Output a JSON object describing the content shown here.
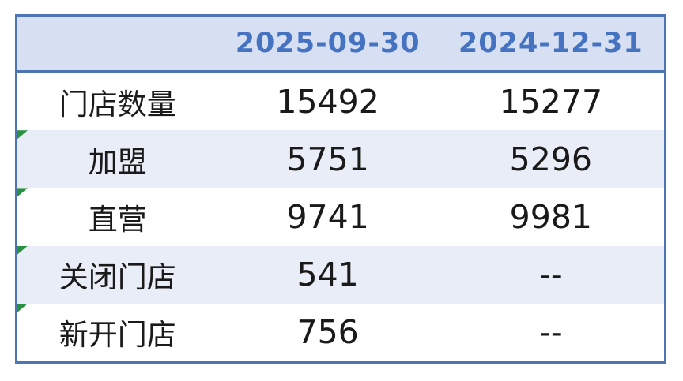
{
  "colors": {
    "border": "#4d74b3",
    "header_bg": "#d6e0f2",
    "header_text": "#4673c1",
    "alt_row_bg": "#e9edf7",
    "row_bg": "#ffffff",
    "text": "#1a1a1a",
    "indicator_green": "#279140"
  },
  "icons": {
    "error_indicator": "green-corner-triangle"
  },
  "table": {
    "header": {
      "col_current": "2025-09-30",
      "col_prior": "2024-12-31"
    },
    "rows": [
      {
        "label": "门店数量",
        "current": "15492",
        "prior": "15277"
      },
      {
        "label": "加盟",
        "current": "5751",
        "prior": "5296"
      },
      {
        "label": "直营",
        "current": "9741",
        "prior": "9981"
      },
      {
        "label": "关闭门店",
        "current": "541",
        "prior": "--"
      },
      {
        "label": "新开门店",
        "current": "756",
        "prior": "--"
      }
    ]
  }
}
